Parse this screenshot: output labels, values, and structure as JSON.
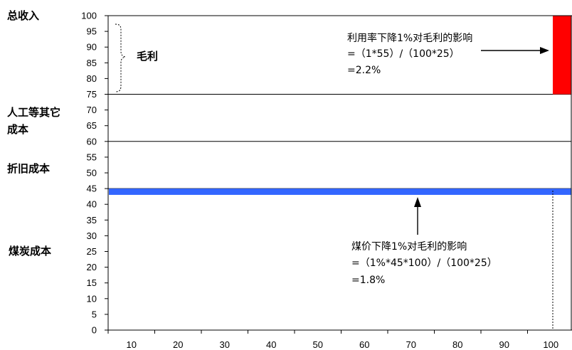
{
  "chart_data": {
    "type": "bar",
    "x_ticks": [
      10,
      20,
      30,
      40,
      50,
      60,
      70,
      80,
      90,
      100
    ],
    "y_ticks": [
      0,
      5,
      10,
      15,
      20,
      25,
      30,
      35,
      40,
      45,
      50,
      55,
      60,
      65,
      70,
      75,
      80,
      85,
      90,
      95,
      100
    ],
    "xlim": [
      0,
      100
    ],
    "ylim": [
      0,
      100
    ],
    "reference_lines": [
      {
        "y": 75
      },
      {
        "y": 60
      },
      {
        "y": 45
      }
    ],
    "bars": [
      {
        "name": "red-bar",
        "x_start": 96,
        "x_end": 100,
        "y_start": 75,
        "y_end": 100,
        "color": "#ff0000"
      },
      {
        "name": "blue-band",
        "x_start": 0,
        "x_end": 100,
        "y_start": 43,
        "y_end": 45,
        "color": "#3366ff"
      }
    ],
    "side_labels": [
      {
        "text": "总收入",
        "y": 100
      },
      {
        "text": "毛利",
        "y": 87
      },
      {
        "text": "人工等其它",
        "y": 70
      },
      {
        "text": "成本",
        "y": 70
      },
      {
        "text": "折旧成本",
        "y": 52.5
      },
      {
        "text": "煤炭成本",
        "y": 25
      }
    ],
    "annotations": [
      {
        "lines": [
          "利用率下降1%对毛利的影响",
          "=（1*55）/（100*25）",
          "=2.2%"
        ],
        "x": 50,
        "y": 95
      },
      {
        "lines": [
          "煤价下降1%对毛利的影响",
          "=（1%*45*100）/（100*25）",
          "=1.8%"
        ],
        "x": 52,
        "y": 27
      }
    ]
  }
}
